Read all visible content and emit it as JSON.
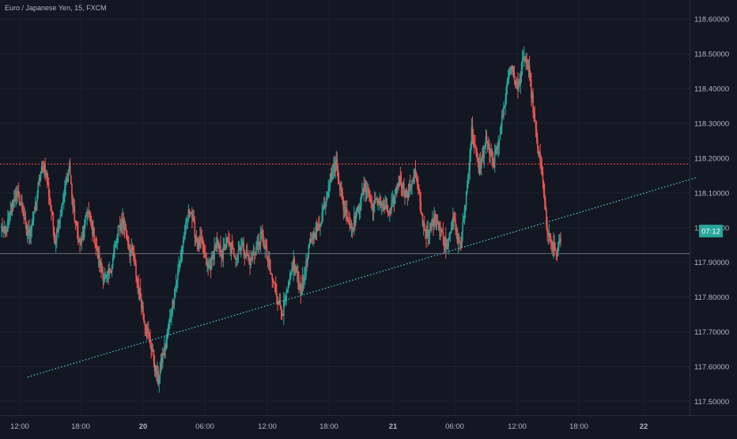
{
  "header": {
    "symbol_title": "Euro / Japanese Yen, 15, FXCM"
  },
  "colors": {
    "background": "#131722",
    "grid": "#1e222d",
    "text": "#b2b5be",
    "up": "#26a69a",
    "down": "#ef5350",
    "resistance_line": "#ef5350",
    "trendline": "#4dd0e1",
    "horizontal_line": "#787b86",
    "badge": "#26a69a"
  },
  "chart_data": {
    "type": "candlestick",
    "symbol": "Euro / Japanese Yen",
    "interval": "15",
    "source": "FXCM",
    "ylim": [
      117.46,
      118.655
    ],
    "y_ticks": [
      "118.60000",
      "118.50000",
      "118.40000",
      "118.30000",
      "118.20000",
      "118.10000",
      "118.00000",
      "117.90000",
      "117.80000",
      "117.70000",
      "117.60000",
      "117.50000"
    ],
    "x_ticks": [
      "12:00",
      "18:00",
      "20",
      "06:00",
      "12:00",
      "18:00",
      "21",
      "06:00",
      "12:00",
      "18:00",
      "22"
    ],
    "x_tick_bold": [
      false,
      false,
      true,
      false,
      false,
      false,
      true,
      false,
      false,
      false,
      true
    ],
    "close_price": [
      118.0,
      117.98,
      118.02,
      118.06,
      118.1,
      118.08,
      118.05,
      117.98,
      117.99,
      118.03,
      118.1,
      118.16,
      118.18,
      118.12,
      118.05,
      117.96,
      118.02,
      118.06,
      118.12,
      118.18,
      118.06,
      118.0,
      117.95,
      117.98,
      118.05,
      118.02,
      117.97,
      117.92,
      117.88,
      117.85,
      117.86,
      117.9,
      117.95,
      118.0,
      118.02,
      117.98,
      117.93,
      117.92,
      117.85,
      117.8,
      117.74,
      117.7,
      117.66,
      117.6,
      117.56,
      117.62,
      117.66,
      117.72,
      117.78,
      117.84,
      117.9,
      117.96,
      118.02,
      118.06,
      118.0,
      117.95,
      117.96,
      117.92,
      117.88,
      117.9,
      117.95,
      117.94,
      117.92,
      117.96,
      117.95,
      117.93,
      117.92,
      117.95,
      117.94,
      117.92,
      117.9,
      117.93,
      117.95,
      117.98,
      117.94,
      117.89,
      117.85,
      117.82,
      117.78,
      117.76,
      117.8,
      117.85,
      117.9,
      117.86,
      117.82,
      117.86,
      117.92,
      117.97,
      117.99,
      118.0,
      118.04,
      118.08,
      118.13,
      118.16,
      118.19,
      118.12,
      118.06,
      118.04,
      118.0,
      118.02,
      118.05,
      118.08,
      118.12,
      118.1,
      118.06,
      118.07,
      118.08,
      118.06,
      118.05,
      118.04,
      118.07,
      118.12,
      118.14,
      118.11,
      118.09,
      118.13,
      118.16,
      118.1,
      118.03,
      117.99,
      117.97,
      118.02,
      118.03,
      118.0,
      117.97,
      117.95,
      118.0,
      118.02,
      117.97,
      117.95,
      118.05,
      118.15,
      118.28,
      118.22,
      118.17,
      118.2,
      118.25,
      118.22,
      118.18,
      118.22,
      118.28,
      118.34,
      118.42,
      118.47,
      118.43,
      118.4,
      118.46,
      118.49,
      118.45,
      118.37,
      118.27,
      118.2,
      118.14,
      118.0,
      117.96,
      117.94,
      117.93,
      117.96
    ],
    "last_price": 117.925,
    "resistance_level": 118.183,
    "trendline": {
      "start_price": 117.57,
      "end_price": 118.145
    },
    "badge_label": "07:12",
    "grid": true
  }
}
